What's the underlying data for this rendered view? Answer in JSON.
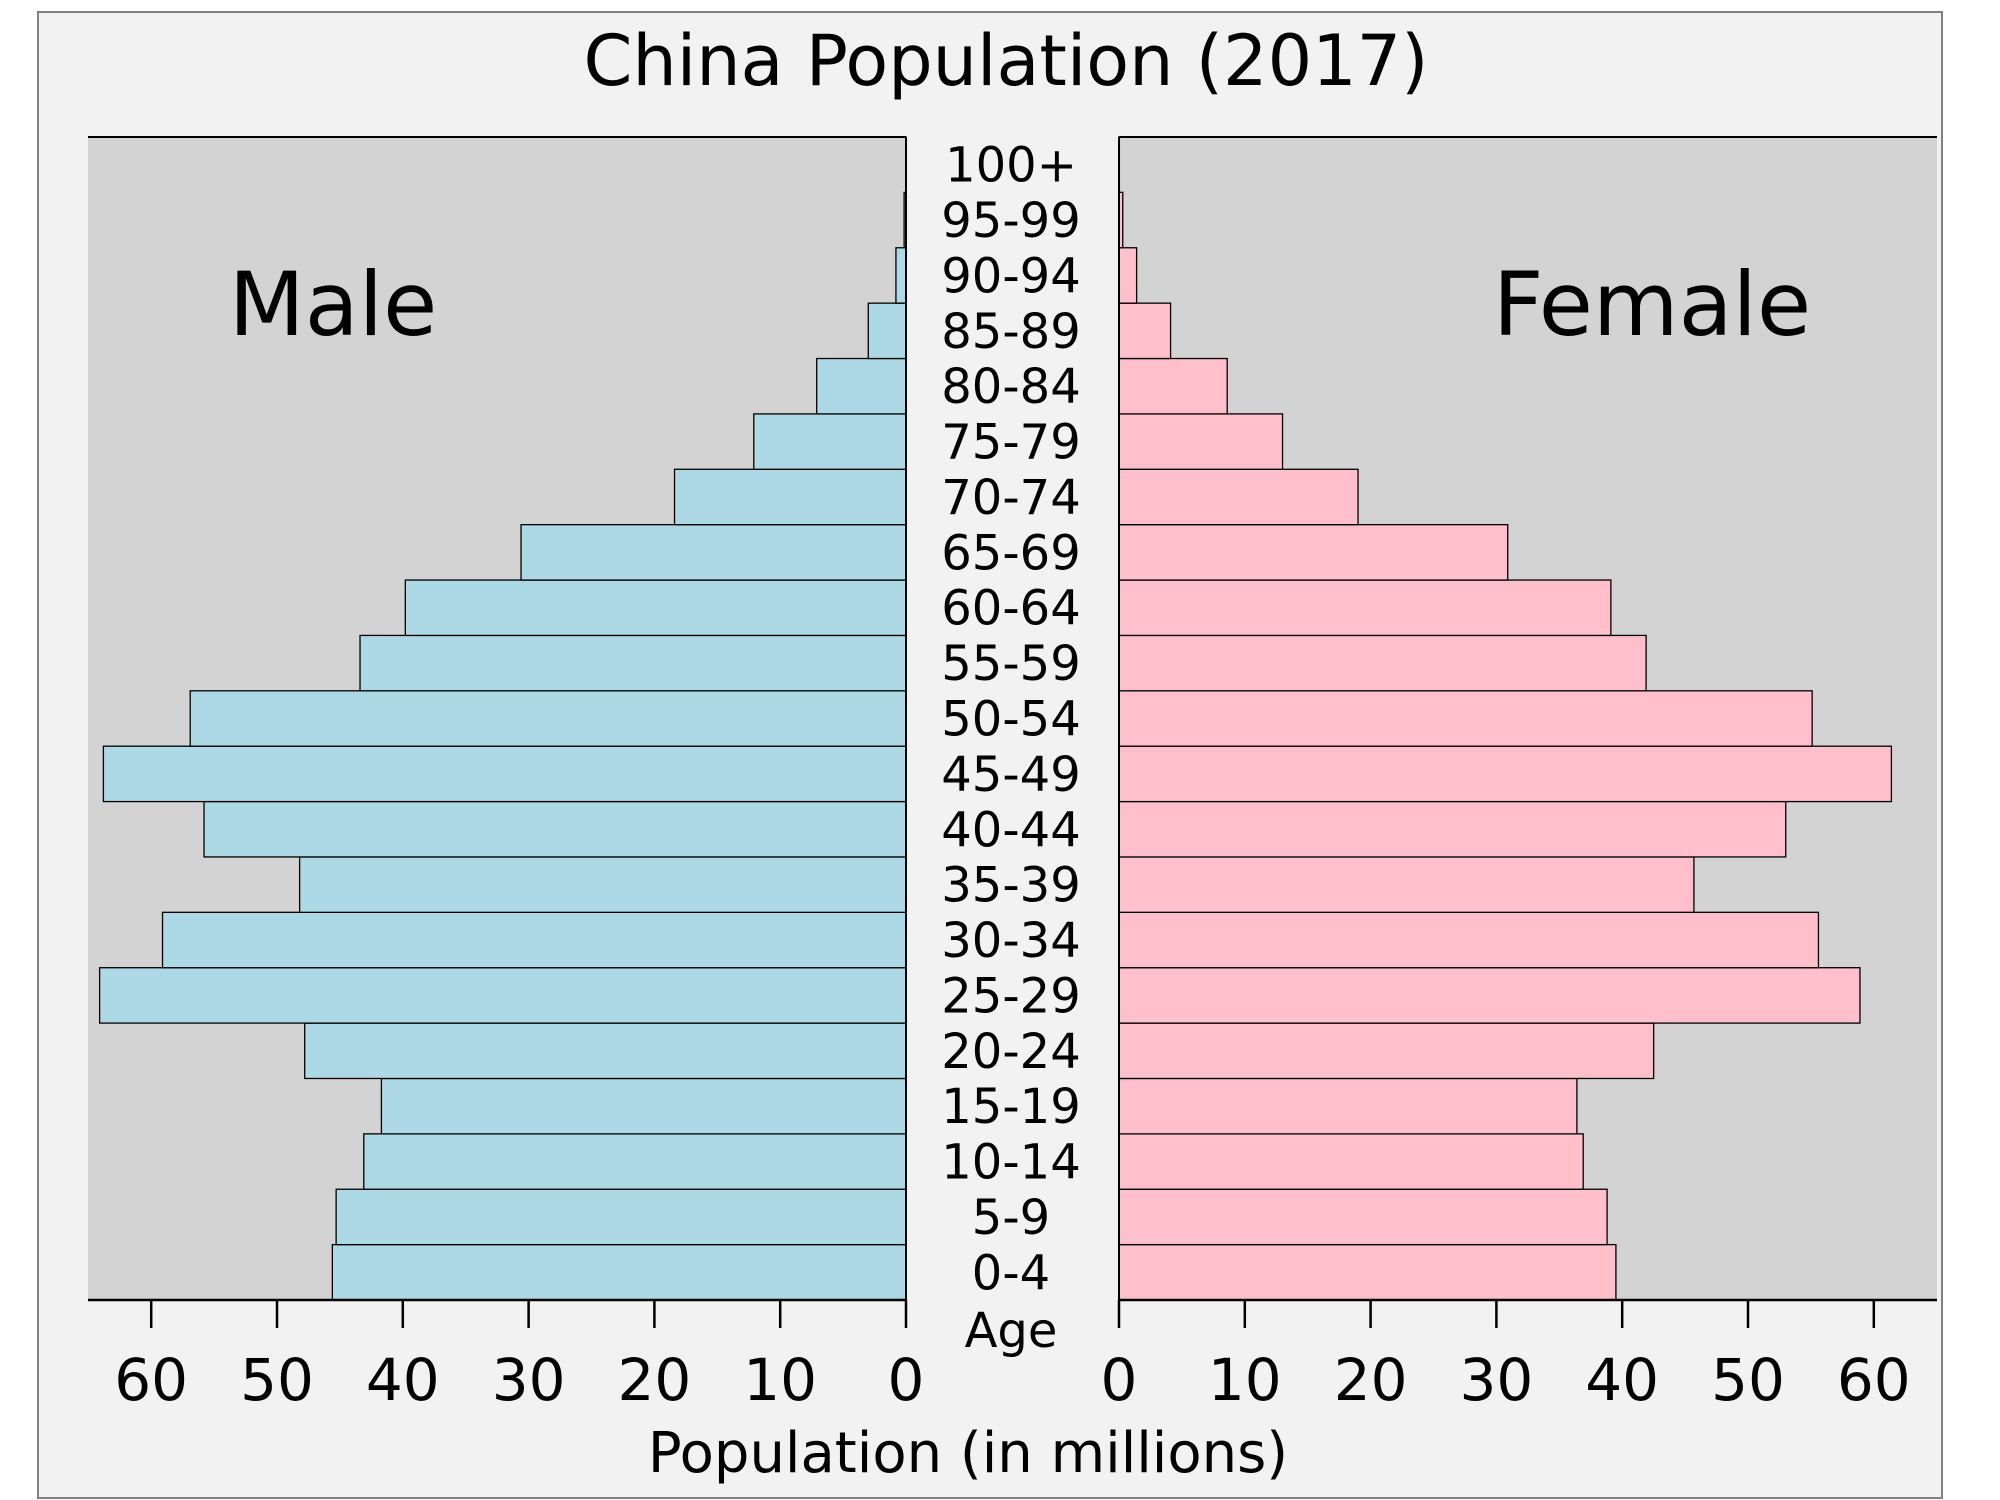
{
  "chart_data": {
    "type": "bar",
    "title": "China Population (2017)",
    "xlabel": "Population (in millions)",
    "ylabel": "Age",
    "xlim": [
      0,
      65
    ],
    "x_ticks": [
      0,
      10,
      20,
      30,
      40,
      50,
      60
    ],
    "categories": [
      "0-4",
      "5-9",
      "10-14",
      "15-19",
      "20-24",
      "25-29",
      "30-34",
      "35-39",
      "40-44",
      "45-49",
      "50-54",
      "55-59",
      "60-64",
      "65-69",
      "70-74",
      "75-79",
      "80-84",
      "85-89",
      "90-94",
      "95-99",
      "100+"
    ],
    "series": [
      {
        "name": "Male",
        "values": [
          45.6,
          45.3,
          43.1,
          41.7,
          47.8,
          64.1,
          59.1,
          48.2,
          55.8,
          63.8,
          56.9,
          43.4,
          39.8,
          30.6,
          18.4,
          12.1,
          7.1,
          3.0,
          0.8,
          0.15,
          0.02
        ],
        "color": "#add8e6"
      },
      {
        "name": "Female",
        "values": [
          39.5,
          38.8,
          36.9,
          36.4,
          42.5,
          58.9,
          55.6,
          45.7,
          53.0,
          61.4,
          55.1,
          41.9,
          39.1,
          30.9,
          19.0,
          13.0,
          8.6,
          4.1,
          1.4,
          0.3,
          0.03
        ],
        "color": "#ffc0cb"
      }
    ],
    "side_labels": {
      "male": "Male",
      "female": "Female"
    },
    "colors": {
      "figure_bg": "#f2f2f2",
      "plot_bg": "#d3d3d3",
      "border": "#808080",
      "bar_edge": "#000000"
    }
  }
}
